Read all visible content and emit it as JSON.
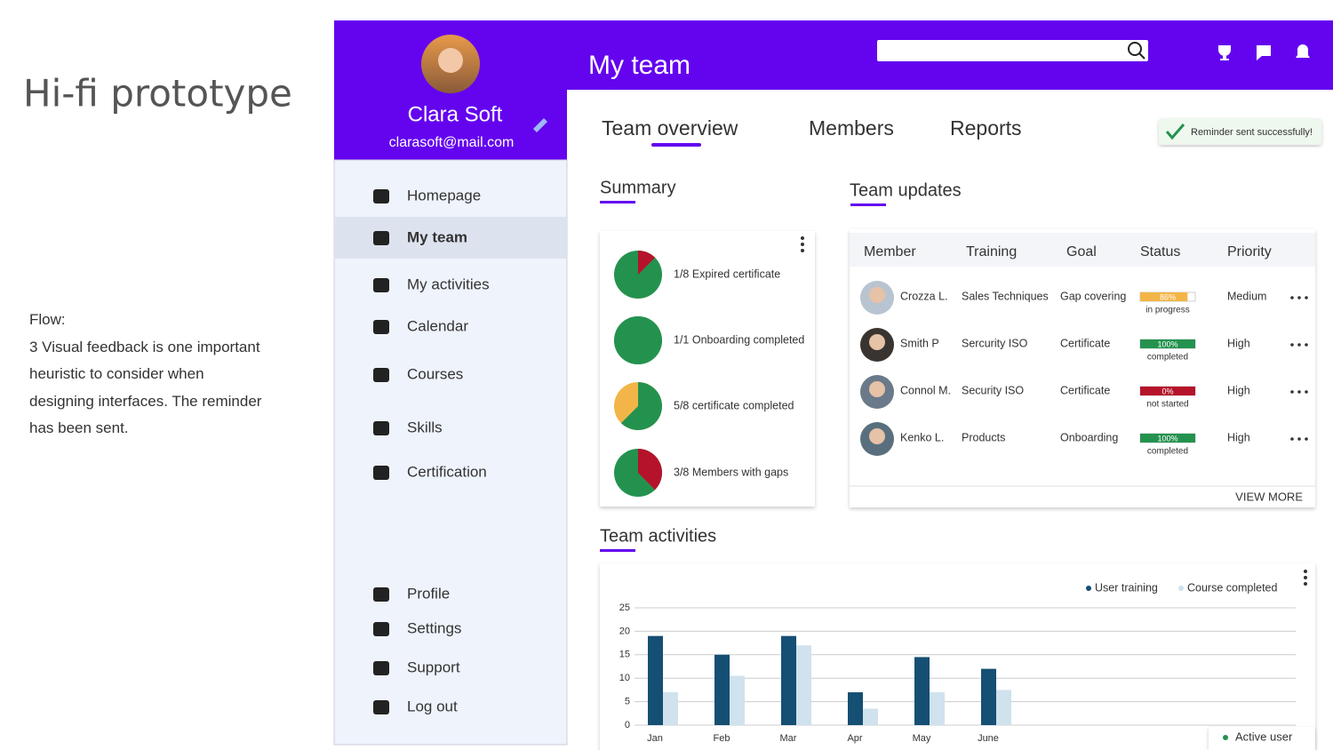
{
  "slide": {
    "title": "Hi-fi prototype",
    "flow_heading": "Flow:",
    "flow_text": "3 Visual feedback is one important heuristic to consider when designing interfaces. The reminder has been sent."
  },
  "sidebar": {
    "name": "Clara Soft",
    "email": "clarasoft@mail.com",
    "nav": [
      "Homepage",
      "My team",
      "My activities",
      "Calendar",
      "Courses",
      "Skills",
      "Certification"
    ],
    "bottom_nav": [
      "Profile",
      "Settings",
      "Support",
      "Log out"
    ]
  },
  "header": {
    "title": "My team"
  },
  "tabs": [
    "Team overview",
    "Members",
    "Reports"
  ],
  "toast": "Reminder sent successfully!",
  "summary": {
    "title": "Summary",
    "items": [
      {
        "label": "1/8 Expired certificate",
        "part": 1,
        "whole": 8,
        "part_color": "#b5132b",
        "rest_color": "#24924f"
      },
      {
        "label": "1/1 Onboarding completed",
        "part": 1,
        "whole": 1,
        "part_color": "#24924f",
        "rest_color": "#24924f"
      },
      {
        "label": "5/8 certificate completed",
        "part": 5,
        "whole": 8,
        "part_color": "#24924f",
        "rest_color": "#f3b548"
      },
      {
        "label": "3/8 Members with gaps",
        "part": 3,
        "whole": 8,
        "part_color": "#b5132b",
        "rest_color": "#24924f"
      }
    ]
  },
  "team_updates": {
    "title": "Team updates",
    "columns": [
      "Member",
      "Training",
      "Goal",
      "Status",
      "Priority"
    ],
    "rows": [
      {
        "member": "Crozza L.",
        "training": "Sales Techniques",
        "goal": "Gap covering",
        "status": 86,
        "status_label": "86%",
        "status_text": "in progress",
        "status_color": "#f3b548",
        "priority": "Medium"
      },
      {
        "member": "Smith P",
        "training": "Sercurity ISO",
        "goal": "Certificate",
        "status": 100,
        "status_label": "100%",
        "status_text": "completed",
        "status_color": "#24924f",
        "priority": "High"
      },
      {
        "member": "Connol M.",
        "training": "Security ISO",
        "goal": "Certificate",
        "status": 0,
        "status_label": "0%",
        "status_text": "not started",
        "status_color": "#b5132b",
        "priority": "High"
      },
      {
        "member": "Kenko L.",
        "training": "Products",
        "goal": "Onboarding",
        "status": 100,
        "status_label": "100%",
        "status_text": "completed",
        "status_color": "#24924f",
        "priority": "High"
      }
    ],
    "view_more": "VIEW MORE"
  },
  "chart_data": {
    "type": "bar",
    "title": "Team activities",
    "categories": [
      "Jan",
      "Feb",
      "Mar",
      "Apr",
      "May",
      "June"
    ],
    "series": [
      {
        "name": "User training",
        "color": "#154f73",
        "values": [
          19,
          15,
          19,
          7,
          14.5,
          12
        ]
      },
      {
        "name": "Course completed",
        "color": "#cfe2ed",
        "values": [
          7,
          10.5,
          17,
          3.5,
          7,
          7.5
        ]
      }
    ],
    "ylim": [
      0,
      25
    ],
    "yticks": [
      0,
      5,
      10,
      15,
      20,
      25
    ],
    "grid": true
  },
  "badge": "Active user"
}
